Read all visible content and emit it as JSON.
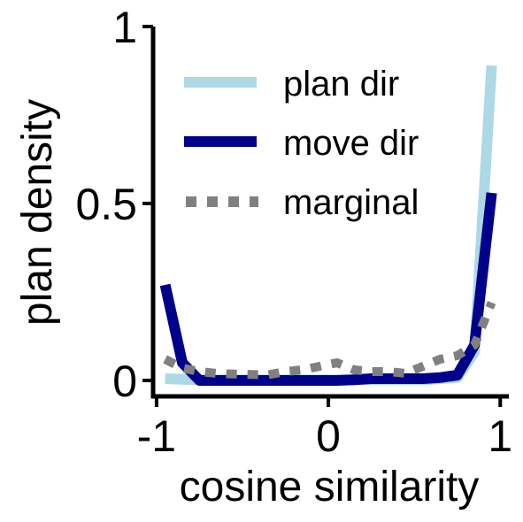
{
  "chart_data": {
    "type": "line",
    "xlabel": "cosine similarity",
    "ylabel": "plan density",
    "xlim": [
      -1.02,
      1.05
    ],
    "ylim": [
      -0.045,
      1.0
    ],
    "xticks": [
      -1,
      0,
      1
    ],
    "xtick_labels": [
      "-1",
      "0",
      "1"
    ],
    "yticks": [
      0,
      0.5,
      1
    ],
    "ytick_labels": [
      "0",
      "0.5",
      "1"
    ],
    "grid": false,
    "legend_position": "top-right",
    "series": [
      {
        "name": "plan dir",
        "color": "#add8e6",
        "style": "solid",
        "x": [
          -0.95,
          -0.85,
          -0.75,
          -0.65,
          -0.55,
          -0.45,
          -0.35,
          -0.25,
          -0.15,
          -0.05,
          0.05,
          0.15,
          0.25,
          0.35,
          0.45,
          0.55,
          0.65,
          0.75,
          0.85,
          0.95
        ],
        "y": [
          0.005,
          0.003,
          0.002,
          0.002,
          0.002,
          0.002,
          0.002,
          0.002,
          0.002,
          0.002,
          0.002,
          0.002,
          0.002,
          0.002,
          0.002,
          0.002,
          0.005,
          0.008,
          0.08,
          0.89
        ]
      },
      {
        "name": "move dir",
        "color": "#00008b",
        "style": "solid",
        "x": [
          -0.95,
          -0.85,
          -0.75,
          -0.65,
          -0.55,
          -0.45,
          -0.35,
          -0.25,
          -0.15,
          -0.05,
          0.05,
          0.15,
          0.25,
          0.35,
          0.45,
          0.55,
          0.65,
          0.75,
          0.85,
          0.95
        ],
        "y": [
          0.27,
          0.05,
          0.0,
          0.0,
          0.0,
          0.0,
          0.0,
          0.0,
          0.0,
          0.0,
          0.0,
          0.002,
          0.005,
          0.005,
          0.005,
          0.005,
          0.008,
          0.015,
          0.1,
          0.53
        ]
      },
      {
        "name": "marginal",
        "color": "#808080",
        "style": "dotted",
        "x": [
          -0.95,
          -0.85,
          -0.75,
          -0.65,
          -0.55,
          -0.45,
          -0.35,
          -0.25,
          -0.15,
          -0.05,
          0.05,
          0.15,
          0.25,
          0.35,
          0.45,
          0.55,
          0.65,
          0.75,
          0.85,
          0.95
        ],
        "y": [
          0.06,
          0.035,
          0.025,
          0.02,
          0.018,
          0.017,
          0.016,
          0.025,
          0.03,
          0.04,
          0.05,
          0.03,
          0.025,
          0.025,
          0.02,
          0.04,
          0.06,
          0.07,
          0.1,
          0.22
        ]
      }
    ]
  }
}
